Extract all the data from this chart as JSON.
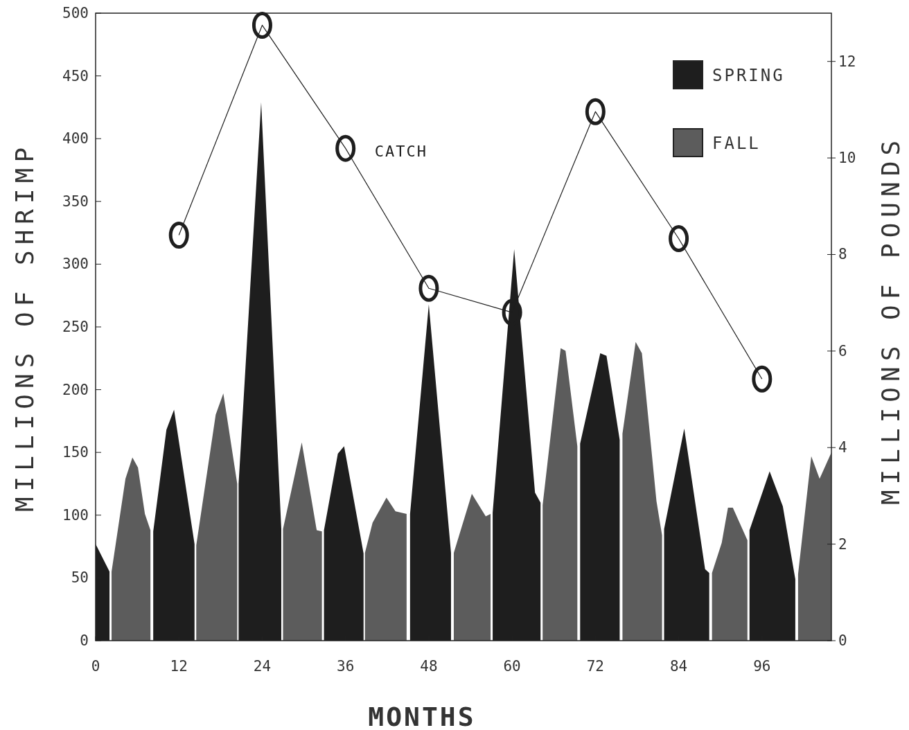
{
  "chart_data": {
    "type": "area",
    "xlabel": "MONTHS",
    "ylabel": "MILLIONS OF SHRIMP",
    "y2label": "MILLIONS OF POUNDS",
    "xlim": [
      0,
      106
    ],
    "xticks": [
      0,
      12,
      24,
      36,
      48,
      60,
      72,
      84,
      96
    ],
    "ylim": [
      0,
      500
    ],
    "yticks": [
      0,
      50,
      100,
      150,
      200,
      250,
      300,
      350,
      400,
      450,
      500
    ],
    "y2lim": [
      0,
      13
    ],
    "y2ticks": [
      0,
      2,
      4,
      6,
      8,
      10,
      12
    ],
    "legend": "top right",
    "grid": false,
    "series": [
      {
        "name": "SPRING",
        "color": "#1e1e1e",
        "x": [
          0,
          2.0,
          5,
          8.3,
          10.2,
          11.3,
          14.25,
          17,
          20.6,
          23.85,
          26.75,
          30,
          32.9,
          34.9,
          35.8,
          38.6,
          42,
          45.3,
          48.0,
          51.2,
          54,
          57.2,
          60.3,
          63.3,
          64.1,
          67,
          69.8,
          72.7,
          73.6,
          75.5,
          79,
          81.9,
          84.8,
          87.8,
          88.4,
          91,
          94.2,
          97.1,
          99,
          100.8
        ],
        "values": [
          77,
          55,
          null,
          87,
          168,
          184,
          77,
          null,
          125,
          429,
          89,
          null,
          88,
          149,
          155,
          69.5,
          null,
          101,
          268,
          70,
          null,
          102,
          312,
          118,
          110,
          null,
          157,
          229,
          227,
          160,
          null,
          89,
          169,
          57,
          54,
          null,
          88,
          135,
          107,
          49
        ]
      },
      {
        "name": "FALL",
        "color": "#5c5c5c",
        "x": [
          2.3,
          4.3,
          5.3,
          6.1,
          7.1,
          7.9,
          11,
          14.5,
          17.3,
          18.4,
          20.4,
          24,
          27.0,
          29.7,
          31.85,
          32.6,
          36,
          38.8,
          39.9,
          41.9,
          43.2,
          44.8,
          48,
          51.6,
          54.2,
          56.2,
          56.9,
          60,
          64.4,
          67.0,
          67.7,
          69.4,
          73,
          75.9,
          77.8,
          78.7,
          80.8,
          81.6,
          85,
          88.8,
          90.2,
          91.1,
          91.8,
          93.9,
          97,
          101.2,
          103.1,
          104.3,
          106
        ],
        "values": [
          55,
          129,
          146,
          138,
          101,
          88,
          null,
          76,
          180,
          197,
          125,
          null,
          89,
          158,
          88,
          87,
          null,
          70,
          94,
          114,
          103,
          101,
          null,
          70,
          117,
          99,
          101,
          null,
          108,
          233,
          231,
          155,
          null,
          165,
          238,
          229,
          111,
          84,
          null,
          54,
          78,
          106,
          106,
          80,
          null,
          53,
          147,
          129,
          150
        ]
      },
      {
        "name": "CATCH",
        "type": "line",
        "marker": "circle",
        "axis": "y2",
        "color": "#1e1e1e",
        "x": [
          12,
          24,
          36,
          48,
          60,
          72,
          84,
          96
        ],
        "values": [
          8.4,
          12.75,
          10.2,
          7.3,
          6.8,
          10.96,
          8.33,
          5.42
        ]
      }
    ]
  }
}
